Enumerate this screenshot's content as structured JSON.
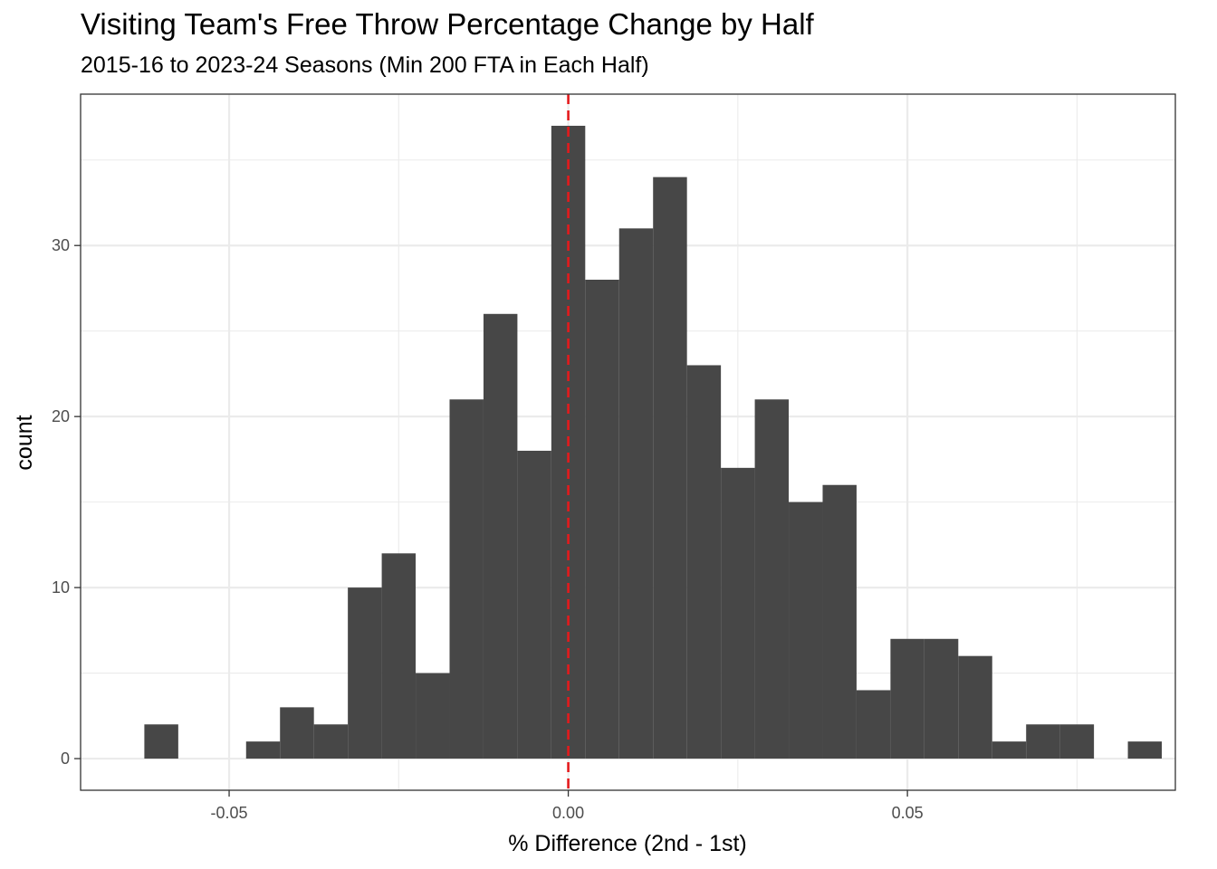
{
  "chart_data": {
    "type": "bar",
    "subtype": "histogram",
    "title": "Visiting Team's Free Throw Percentage Change by Half",
    "subtitle": "2015-16 to 2023-24 Seasons (Min 200 FTA in Each Half)",
    "xlabel": "% Difference (2nd - 1st)",
    "ylabel": "count",
    "bin_width": 0.005,
    "bins": [
      {
        "x0": -0.0625,
        "x1": -0.0575,
        "count": 2
      },
      {
        "x0": -0.0575,
        "x1": -0.0525,
        "count": 0
      },
      {
        "x0": -0.0525,
        "x1": -0.0475,
        "count": 0
      },
      {
        "x0": -0.0475,
        "x1": -0.0425,
        "count": 1
      },
      {
        "x0": -0.0425,
        "x1": -0.0375,
        "count": 3
      },
      {
        "x0": -0.0375,
        "x1": -0.0325,
        "count": 2
      },
      {
        "x0": -0.0325,
        "x1": -0.0275,
        "count": 10
      },
      {
        "x0": -0.0275,
        "x1": -0.0225,
        "count": 12
      },
      {
        "x0": -0.0225,
        "x1": -0.0175,
        "count": 5
      },
      {
        "x0": -0.0175,
        "x1": -0.0125,
        "count": 21
      },
      {
        "x0": -0.0125,
        "x1": -0.0075,
        "count": 26
      },
      {
        "x0": -0.0075,
        "x1": -0.0025,
        "count": 18
      },
      {
        "x0": -0.0025,
        "x1": 0.0025,
        "count": 37
      },
      {
        "x0": 0.0025,
        "x1": 0.0075,
        "count": 28
      },
      {
        "x0": 0.0075,
        "x1": 0.0125,
        "count": 31
      },
      {
        "x0": 0.0125,
        "x1": 0.0175,
        "count": 34
      },
      {
        "x0": 0.0175,
        "x1": 0.0225,
        "count": 23
      },
      {
        "x0": 0.0225,
        "x1": 0.0275,
        "count": 17
      },
      {
        "x0": 0.0275,
        "x1": 0.0325,
        "count": 21
      },
      {
        "x0": 0.0325,
        "x1": 0.0375,
        "count": 15
      },
      {
        "x0": 0.0375,
        "x1": 0.0425,
        "count": 16
      },
      {
        "x0": 0.0425,
        "x1": 0.0475,
        "count": 4
      },
      {
        "x0": 0.0475,
        "x1": 0.0525,
        "count": 7
      },
      {
        "x0": 0.0525,
        "x1": 0.0575,
        "count": 7
      },
      {
        "x0": 0.0575,
        "x1": 0.0625,
        "count": 6
      },
      {
        "x0": 0.0625,
        "x1": 0.0675,
        "count": 1
      },
      {
        "x0": 0.0675,
        "x1": 0.0725,
        "count": 2
      },
      {
        "x0": 0.0725,
        "x1": 0.0775,
        "count": 2
      },
      {
        "x0": 0.0775,
        "x1": 0.0825,
        "count": 0
      },
      {
        "x0": 0.0825,
        "x1": 0.0875,
        "count": 1
      }
    ],
    "xlim": [
      -0.0719,
      0.0895
    ],
    "ylim": [
      -1.85,
      38.85
    ],
    "x_ticks": [
      -0.05,
      0.0,
      0.05
    ],
    "x_tick_labels": [
      "-0.05",
      "0.00",
      "0.05"
    ],
    "y_ticks": [
      0,
      10,
      20,
      30
    ],
    "y_tick_labels": [
      "0",
      "10",
      "20",
      "30"
    ],
    "reference_line": {
      "x": 0,
      "style": "dashed",
      "color": "#e41a1c"
    },
    "bar_color": "#474747",
    "grid": true,
    "legend": "none"
  }
}
